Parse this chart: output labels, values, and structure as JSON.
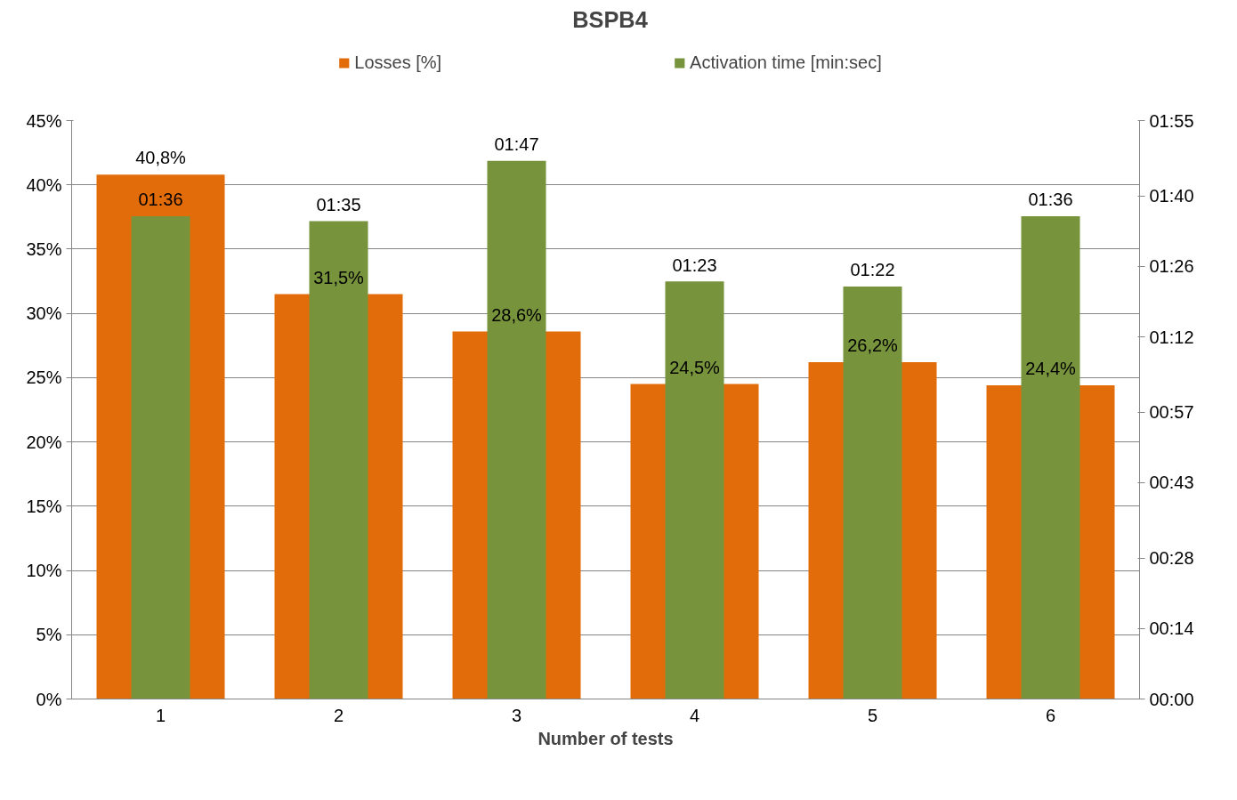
{
  "chart_data": {
    "type": "bar",
    "title": "BSPB4",
    "xlabel": "Number of tests",
    "categories": [
      "1",
      "2",
      "3",
      "4",
      "5",
      "6"
    ],
    "series": [
      {
        "name": "Losses [%]",
        "color": "#e36c0a",
        "values": [
          40.8,
          31.5,
          28.6,
          24.5,
          26.2,
          24.4
        ],
        "value_labels": [
          "40,8%",
          "31,5%",
          "28,6%",
          "24,5%",
          "26,2%",
          "24,4%"
        ]
      },
      {
        "name": "Activation time [min:sec]",
        "color": "#77933c",
        "axis": "y2",
        "values": [
          96,
          95,
          107,
          83,
          82,
          96
        ],
        "value_labels": [
          "01:36",
          "01:35",
          "01:47",
          "01:23",
          "01:22",
          "01:36"
        ]
      }
    ],
    "ylim": [
      0,
      45
    ],
    "yticks": [
      {
        "value": 0,
        "label": "0%"
      },
      {
        "value": 5,
        "label": "5%"
      },
      {
        "value": 10,
        "label": "10%"
      },
      {
        "value": 15,
        "label": "15%"
      },
      {
        "value": 20,
        "label": "20%"
      },
      {
        "value": 25,
        "label": "25%"
      },
      {
        "value": 30,
        "label": "30%"
      },
      {
        "value": 35,
        "label": "35%"
      },
      {
        "value": 40,
        "label": "40%"
      },
      {
        "value": 45,
        "label": "45%"
      }
    ],
    "y2lim": [
      0,
      115
    ],
    "y2ticks": [
      {
        "value": 0,
        "label": "00:00"
      },
      {
        "value": 14,
        "label": "00:14"
      },
      {
        "value": 28,
        "label": "00:28"
      },
      {
        "value": 43,
        "label": "00:43"
      },
      {
        "value": 57,
        "label": "00:57"
      },
      {
        "value": 72,
        "label": "01:12"
      },
      {
        "value": 86,
        "label": "01:26"
      },
      {
        "value": 100,
        "label": "01:40"
      },
      {
        "value": 115,
        "label": "01:55"
      }
    ],
    "grid": "y",
    "legend": "top"
  }
}
